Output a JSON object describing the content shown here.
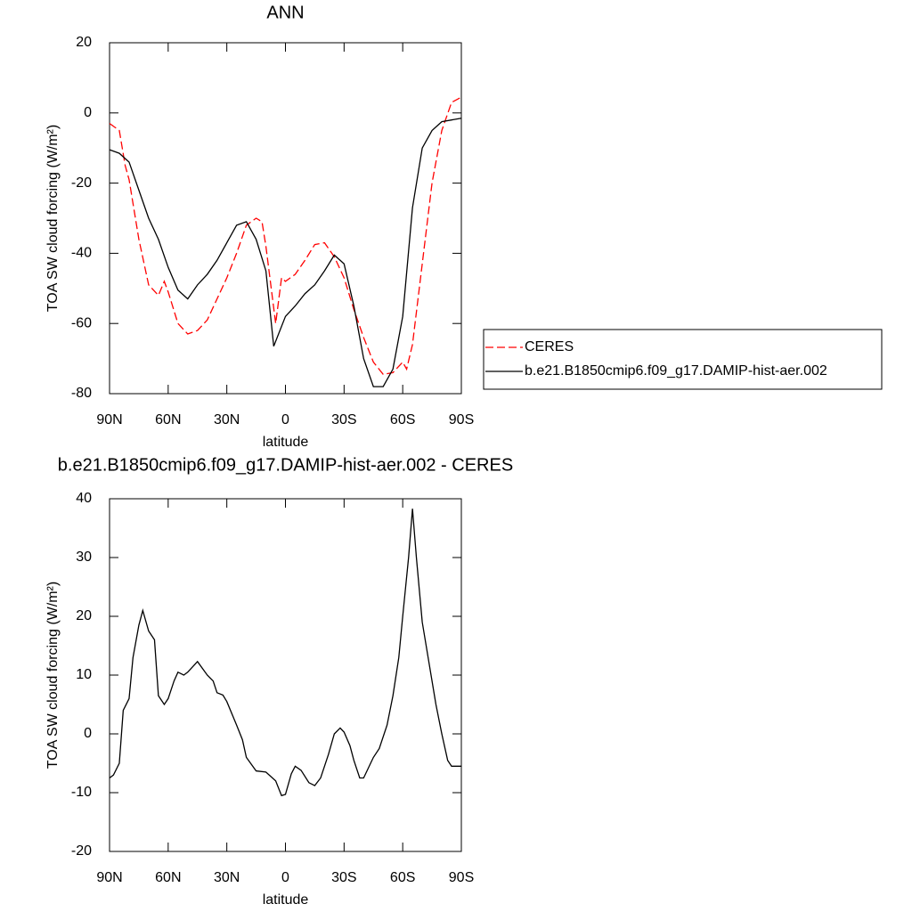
{
  "chart_data": [
    {
      "type": "line",
      "title": "ANN",
      "xlabel": "latitude",
      "ylabel": "TOA SW cloud forcing (W/m²)",
      "xlim": [
        90,
        -90
      ],
      "xticks": [
        {
          "value": 90,
          "label": "90N"
        },
        {
          "value": 60,
          "label": "60N"
        },
        {
          "value": 30,
          "label": "30N"
        },
        0,
        {
          "value": -30,
          "label": "30S"
        },
        {
          "value": -60,
          "label": "60S"
        },
        {
          "value": -90,
          "label": "90S"
        }
      ],
      "ylim": [
        -80,
        20
      ],
      "yticks": [
        -80,
        -60,
        -40,
        -20,
        0,
        20
      ],
      "legend": "right",
      "series": [
        {
          "name": "CERES",
          "color": "#ff0000",
          "dashed": true,
          "x": [
            90,
            85,
            82,
            80,
            75,
            70,
            65,
            62,
            60,
            55,
            50,
            45,
            40,
            35,
            30,
            25,
            20,
            15,
            12,
            10,
            5,
            2,
            0,
            -5,
            -10,
            -15,
            -20,
            -25,
            -30,
            -35,
            -40,
            -45,
            -50,
            -55,
            -60,
            -62,
            -65,
            -70,
            -75,
            -80,
            -85,
            -90
          ],
          "values": [
            -3,
            -5,
            -15,
            -19,
            -36,
            -49,
            -52,
            -48,
            -51,
            -60,
            -63,
            -62,
            -59,
            -53,
            -47,
            -40,
            -32,
            -30,
            -31,
            -38,
            -60,
            -47,
            -48,
            -46,
            -42,
            -37.5,
            -37,
            -41,
            -47,
            -56,
            -64,
            -71,
            -74.5,
            -74,
            -71,
            -73,
            -66,
            -43,
            -20,
            -5,
            3,
            4.5
          ]
        },
        {
          "name": "b.e21.B1850cmip6.f09_g17.DAMIP-hist-aer.002",
          "color": "#000000",
          "dashed": false,
          "x": [
            90,
            85,
            80,
            75,
            70,
            65,
            60,
            55,
            50,
            45,
            40,
            35,
            30,
            25,
            20,
            15,
            10,
            6,
            0,
            -5,
            -10,
            -15,
            -20,
            -25,
            -30,
            -35,
            -40,
            -45,
            -50,
            -55,
            -60,
            -65,
            -70,
            -75,
            -80,
            -85,
            -90
          ],
          "values": [
            -10.5,
            -11.5,
            -14,
            -22,
            -30,
            -36,
            -44,
            -50.5,
            -53,
            -49,
            -46,
            -42,
            -37,
            -32,
            -31,
            -36,
            -45,
            -66.5,
            -58,
            -55,
            -51.5,
            -49,
            -45,
            -40.5,
            -43,
            -55,
            -70,
            -78,
            -78,
            -73,
            -58,
            -27,
            -10,
            -5,
            -2.5,
            -2,
            -1.5
          ]
        }
      ]
    },
    {
      "type": "line",
      "title": "b.e21.B1850cmip6.f09_g17.DAMIP-hist-aer.002 - CERES",
      "xlabel": "latitude",
      "ylabel": "TOA SW cloud forcing (W/m²)",
      "xlim": [
        90,
        -90
      ],
      "xticks": [
        {
          "value": 90,
          "label": "90N"
        },
        {
          "value": 60,
          "label": "60N"
        },
        {
          "value": 30,
          "label": "30N"
        },
        0,
        {
          "value": -30,
          "label": "30S"
        },
        {
          "value": -60,
          "label": "60S"
        },
        {
          "value": -90,
          "label": "90S"
        }
      ],
      "ylim": [
        -20,
        40
      ],
      "yticks": [
        -20,
        -10,
        0,
        10,
        20,
        30,
        40
      ],
      "color": "#000000",
      "x": [
        90,
        88,
        85,
        83,
        80,
        78,
        75,
        73,
        70,
        67,
        65,
        62,
        60,
        57,
        55,
        52,
        50,
        45,
        40,
        37,
        35,
        32,
        30,
        25,
        22,
        20,
        15,
        10,
        5,
        2,
        0,
        -3,
        -5,
        -8,
        -12,
        -15,
        -18,
        -22,
        -25,
        -28,
        -30,
        -33,
        -35,
        -38,
        -40,
        -45,
        -48,
        -52,
        -55,
        -58,
        -60,
        -63,
        -65,
        -67,
        -70,
        -73,
        -77,
        -80,
        -83,
        -85,
        -90
      ],
      "values": [
        -7.5,
        -7,
        -5,
        4,
        6,
        13,
        18.5,
        21,
        17.5,
        16,
        6.5,
        5,
        6,
        9,
        10.5,
        10,
        10.5,
        12.3,
        10,
        9,
        7,
        6.6,
        5.5,
        1.5,
        -1,
        -4,
        -6.3,
        -6.5,
        -8,
        -10.5,
        -10.3,
        -6.8,
        -5.5,
        -6.2,
        -8.3,
        -8.8,
        -7.5,
        -3.5,
        0,
        1,
        0.3,
        -2,
        -4.5,
        -7.5,
        -7.5,
        -4,
        -2.5,
        1.5,
        6.5,
        13,
        20,
        30,
        38.3,
        30,
        19,
        13,
        5,
        0,
        -4.5,
        -5.5,
        -5.5
      ]
    }
  ]
}
